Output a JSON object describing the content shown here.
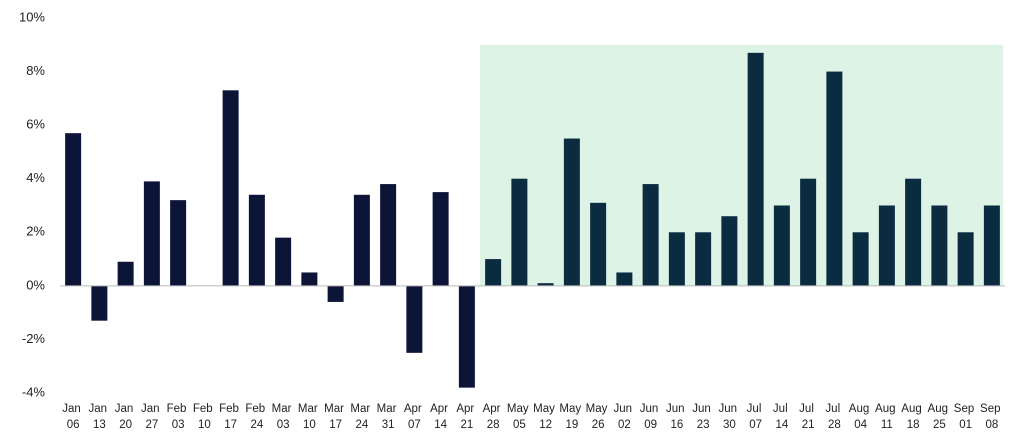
{
  "chart_data": {
    "type": "bar",
    "categories": [
      "Jan 06",
      "Jan 13",
      "Jan 20",
      "Jan 27",
      "Feb 03",
      "Feb 10",
      "Feb 17",
      "Feb 24",
      "Mar 03",
      "Mar 10",
      "Mar 17",
      "Mar 24",
      "Mar 31",
      "Apr 07",
      "Apr 14",
      "Apr 21",
      "Apr 28",
      "May 05",
      "May 12",
      "May 19",
      "May 26",
      "Jun 02",
      "Jun 09",
      "Jun 16",
      "Jun 23",
      "Jun 30",
      "Jul 07",
      "Jul 14",
      "Jul 21",
      "Jul 28",
      "Aug 04",
      "Aug 11",
      "Aug 18",
      "Aug 25",
      "Sep 01",
      "Sep 08"
    ],
    "values": [
      5.7,
      -1.3,
      0.9,
      3.9,
      3.2,
      0,
      7.3,
      3.4,
      1.8,
      0.5,
      -0.6,
      3.4,
      3.8,
      -2.5,
      3.5,
      -3.8,
      1.0,
      4.0,
      0.1,
      5.5,
      3.1,
      0.5,
      3.8,
      2.0,
      2.0,
      2.6,
      8.7,
      3.0,
      4.0,
      8.0,
      2.0,
      3.0,
      4.0,
      3.0,
      2.0,
      3.0
    ],
    "color": "#0c1537",
    "highlight_start": "Apr 28",
    "highlight_top": 9,
    "highlight_color": "#dcf3e6",
    "highlight_bar_color": "#0b2b40",
    "ylim": [
      -4,
      10
    ],
    "yticks": [
      {
        "value": -4,
        "label": "-4%"
      },
      {
        "value": -2,
        "label": "-2%"
      },
      {
        "value": 0,
        "label": "0%"
      },
      {
        "value": 2,
        "label": "2%"
      },
      {
        "value": 4,
        "label": "4%"
      },
      {
        "value": 6,
        "label": "6%"
      },
      {
        "value": 8,
        "label": "8%"
      },
      {
        "value": 10,
        "label": "10%"
      }
    ],
    "grid": false
  }
}
